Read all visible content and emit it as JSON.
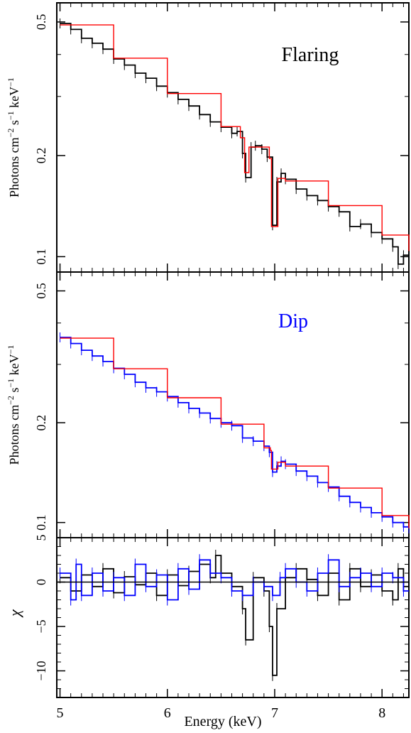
{
  "chart_data": [
    {
      "type": "line",
      "panel": "top",
      "annotation": "Flaring",
      "ylabel_main": "Photons cm",
      "ylabel_sup1": "−2",
      "ylabel_mid1": " s",
      "ylabel_sup2": "−1",
      "ylabel_mid2": " keV",
      "ylabel_sup3": "−1",
      "yscale": "log",
      "ylim": [
        0.09,
        0.57
      ],
      "xlim": [
        4.97,
        8.25
      ],
      "yticks": [
        0.1,
        0.2,
        0.5
      ],
      "yticklabels": [
        "0.1",
        "0.2",
        "0.5"
      ],
      "series": [
        {
          "role": "data",
          "color": "#000000",
          "points": [
            [
              5.0,
              0.495
            ],
            [
              5.1,
              0.475
            ],
            [
              5.2,
              0.447
            ],
            [
              5.3,
              0.432
            ],
            [
              5.4,
              0.415
            ],
            [
              5.5,
              0.388
            ],
            [
              5.6,
              0.372
            ],
            [
              5.7,
              0.352
            ],
            [
              5.8,
              0.34
            ],
            [
              5.9,
              0.322
            ],
            [
              6.0,
              0.308
            ],
            [
              6.1,
              0.294
            ],
            [
              6.2,
              0.281
            ],
            [
              6.3,
              0.265
            ],
            [
              6.4,
              0.252
            ],
            [
              6.5,
              0.243
            ],
            [
              6.6,
              0.233
            ],
            [
              6.65,
              0.236
            ],
            [
              6.7,
              0.203
            ],
            [
              6.73,
              0.172
            ],
            [
              6.78,
              0.212
            ],
            [
              6.82,
              0.214
            ],
            [
              6.88,
              0.209
            ],
            [
              6.93,
              0.198
            ],
            [
              6.98,
              0.124
            ],
            [
              7.02,
              0.167
            ],
            [
              7.06,
              0.177
            ],
            [
              7.1,
              0.17
            ],
            [
              7.2,
              0.159
            ],
            [
              7.3,
              0.152
            ],
            [
              7.4,
              0.147
            ],
            [
              7.5,
              0.141
            ],
            [
              7.6,
              0.136
            ],
            [
              7.7,
              0.123
            ],
            [
              7.8,
              0.125
            ],
            [
              7.9,
              0.118
            ],
            [
              8.0,
              0.113
            ],
            [
              8.1,
              0.107
            ],
            [
              8.15,
              0.095
            ],
            [
              8.2,
              0.101
            ],
            [
              8.25,
              0.098
            ]
          ]
        },
        {
          "role": "model",
          "color": "#ff0000",
          "points": [
            [
              5.0,
              0.49
            ],
            [
              5.5,
              0.39
            ],
            [
              6.0,
              0.306
            ],
            [
              6.5,
              0.244
            ],
            [
              6.68,
              0.226
            ],
            [
              6.72,
              0.178
            ],
            [
              6.76,
              0.212
            ],
            [
              6.95,
              0.196
            ],
            [
              6.97,
              0.123
            ],
            [
              7.01,
              0.123
            ],
            [
              7.03,
              0.171
            ],
            [
              7.1,
              0.168
            ],
            [
              7.5,
              0.142
            ],
            [
              8.0,
              0.116
            ],
            [
              8.25,
              0.104
            ]
          ]
        }
      ]
    },
    {
      "type": "line",
      "panel": "middle",
      "annotation": "Dip",
      "ylabel_main": "Photons cm",
      "ylabel_sup1": "−2",
      "ylabel_mid1": " s",
      "ylabel_sup2": "−1",
      "ylabel_mid2": " keV",
      "ylabel_sup3": "−1",
      "yscale": "log",
      "ylim": [
        0.09,
        0.57
      ],
      "xlim": [
        4.97,
        8.25
      ],
      "yticks": [
        0.1,
        0.2,
        0.5
      ],
      "yticklabels": [
        "0.1",
        "0.2",
        "0.5"
      ],
      "series": [
        {
          "role": "data",
          "color": "#0000ff",
          "points": [
            [
              5.0,
              0.362
            ],
            [
              5.1,
              0.347
            ],
            [
              5.2,
              0.331
            ],
            [
              5.3,
              0.318
            ],
            [
              5.4,
              0.306
            ],
            [
              5.5,
              0.292
            ],
            [
              5.6,
              0.28
            ],
            [
              5.7,
              0.265
            ],
            [
              5.8,
              0.255
            ],
            [
              5.9,
              0.248
            ],
            [
              6.0,
              0.24
            ],
            [
              6.1,
              0.23
            ],
            [
              6.2,
              0.221
            ],
            [
              6.3,
              0.214
            ],
            [
              6.4,
              0.206
            ],
            [
              6.5,
              0.2
            ],
            [
              6.6,
              0.196
            ],
            [
              6.7,
              0.18
            ],
            [
              6.8,
              0.176
            ],
            [
              6.9,
              0.17
            ],
            [
              6.95,
              0.163
            ],
            [
              6.98,
              0.142
            ],
            [
              7.02,
              0.148
            ],
            [
              7.06,
              0.153
            ],
            [
              7.1,
              0.15
            ],
            [
              7.2,
              0.143
            ],
            [
              7.3,
              0.138
            ],
            [
              7.4,
              0.132
            ],
            [
              7.5,
              0.128
            ],
            [
              7.6,
              0.12
            ],
            [
              7.7,
              0.115
            ],
            [
              7.8,
              0.111
            ],
            [
              7.9,
              0.107
            ],
            [
              8.0,
              0.104
            ],
            [
              8.1,
              0.1
            ],
            [
              8.2,
              0.097
            ],
            [
              8.25,
              0.096
            ]
          ]
        },
        {
          "role": "model",
          "color": "#ff0000",
          "points": [
            [
              5.0,
              0.36
            ],
            [
              5.5,
              0.291
            ],
            [
              6.0,
              0.238
            ],
            [
              6.5,
              0.198
            ],
            [
              6.9,
              0.168
            ],
            [
              6.96,
              0.165
            ],
            [
              6.97,
              0.145
            ],
            [
              7.01,
              0.145
            ],
            [
              7.03,
              0.152
            ],
            [
              7.1,
              0.148
            ],
            [
              7.5,
              0.127
            ],
            [
              8.0,
              0.105
            ],
            [
              8.25,
              0.096
            ]
          ]
        }
      ]
    },
    {
      "type": "line",
      "panel": "bottom",
      "ylabel": "χ",
      "xlabel": "Energy (keV)",
      "ylim": [
        -13,
        5
      ],
      "xlim": [
        4.97,
        8.25
      ],
      "yticks": [
        -10,
        -5,
        0,
        5
      ],
      "yticklabels": [
        "−10",
        "−5",
        "0",
        "5"
      ],
      "xticks": [
        5,
        6,
        7,
        8
      ],
      "xticklabels": [
        "5",
        "6",
        "7",
        "8"
      ],
      "series": [
        {
          "role": "flaring-residuals",
          "color": "#000000",
          "points": [
            [
              5.0,
              0.5
            ],
            [
              5.1,
              -1.0
            ],
            [
              5.2,
              0.8
            ],
            [
              5.3,
              -0.5
            ],
            [
              5.4,
              1.5
            ],
            [
              5.5,
              -1.2
            ],
            [
              5.6,
              0.6
            ],
            [
              5.7,
              -0.3
            ],
            [
              5.8,
              1.0
            ],
            [
              5.9,
              -1.5
            ],
            [
              6.0,
              0.8
            ],
            [
              6.1,
              -0.4
            ],
            [
              6.2,
              1.2
            ],
            [
              6.3,
              2.0
            ],
            [
              6.4,
              0.5
            ],
            [
              6.45,
              3.0
            ],
            [
              6.5,
              1.0
            ],
            [
              6.6,
              -0.5
            ],
            [
              6.7,
              -3.0
            ],
            [
              6.73,
              -6.5
            ],
            [
              6.8,
              0.5
            ],
            [
              6.9,
              -1.0
            ],
            [
              6.95,
              -5.0
            ],
            [
              6.98,
              -10.5
            ],
            [
              7.02,
              -3.0
            ],
            [
              7.1,
              0.5
            ],
            [
              7.2,
              1.5
            ],
            [
              7.3,
              0.3
            ],
            [
              7.4,
              -1.5
            ],
            [
              7.5,
              1.0
            ],
            [
              7.6,
              -2.0
            ],
            [
              7.7,
              1.5
            ],
            [
              7.8,
              -0.5
            ],
            [
              7.9,
              0.8
            ],
            [
              8.0,
              -1.0
            ],
            [
              8.1,
              -2.0
            ],
            [
              8.15,
              1.5
            ],
            [
              8.2,
              -0.5
            ]
          ]
        },
        {
          "role": "dip-residuals",
          "color": "#0000ff",
          "points": [
            [
              5.0,
              1.0
            ],
            [
              5.1,
              -2.0
            ],
            [
              5.15,
              2.0
            ],
            [
              5.2,
              -1.5
            ],
            [
              5.3,
              1.0
            ],
            [
              5.4,
              -1.0
            ],
            [
              5.5,
              0.5
            ],
            [
              5.6,
              -1.5
            ],
            [
              5.7,
              2.0
            ],
            [
              5.8,
              -0.5
            ],
            [
              5.9,
              0.8
            ],
            [
              6.0,
              -2.0
            ],
            [
              6.1,
              1.5
            ],
            [
              6.2,
              -0.8
            ],
            [
              6.3,
              2.5
            ],
            [
              6.4,
              1.0
            ],
            [
              6.5,
              0.5
            ],
            [
              6.6,
              -1.0
            ],
            [
              6.7,
              -1.5
            ],
            [
              6.8,
              0.0
            ],
            [
              6.9,
              -0.5
            ],
            [
              6.98,
              -1.5
            ],
            [
              7.05,
              0.5
            ],
            [
              7.1,
              1.5
            ],
            [
              7.2,
              0.0
            ],
            [
              7.3,
              -1.0
            ],
            [
              7.4,
              1.0
            ],
            [
              7.5,
              2.5
            ],
            [
              7.6,
              -0.5
            ],
            [
              7.7,
              0.5
            ],
            [
              7.8,
              1.0
            ],
            [
              7.9,
              -0.5
            ],
            [
              8.0,
              1.0
            ],
            [
              8.1,
              0.5
            ],
            [
              8.2,
              -1.0
            ]
          ]
        },
        {
          "role": "zero-line",
          "color": "#000000",
          "points": [
            [
              4.97,
              0
            ],
            [
              8.25,
              0
            ]
          ]
        }
      ]
    }
  ]
}
